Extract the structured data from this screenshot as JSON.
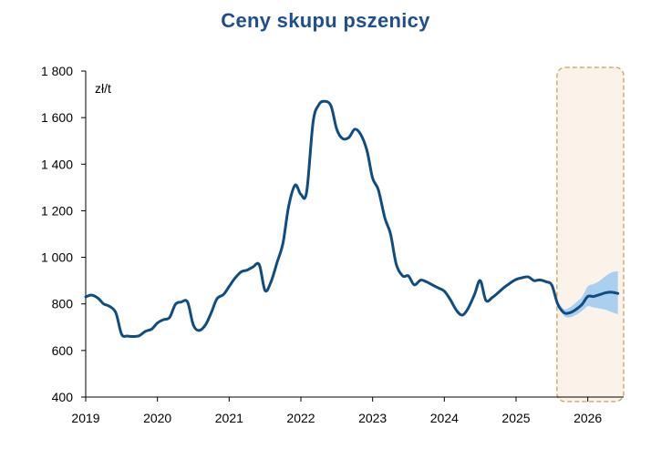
{
  "chart_data": {
    "type": "line",
    "title": "Ceny skupu pszenicy",
    "unit_label": "zł/t",
    "xlabel": "",
    "ylabel": "",
    "xlim": [
      2019.0,
      2026.5
    ],
    "ylim": [
      400,
      1800
    ],
    "y_ticks": [
      400,
      600,
      800,
      1000,
      1200,
      1400,
      1600,
      1800
    ],
    "y_tick_labels": [
      "400",
      "600",
      "800",
      "1 000",
      "1 200",
      "1 400",
      "1 600",
      "1 800"
    ],
    "x_ticks": [
      2019,
      2020,
      2021,
      2022,
      2023,
      2024,
      2025,
      2026
    ],
    "x_tick_labels": [
      "2019",
      "2020",
      "2021",
      "2022",
      "2023",
      "2024",
      "2025",
      "2026"
    ],
    "grid": false,
    "legend": "none",
    "colors": {
      "line": "#0f4c81",
      "band": "#9cc8f0",
      "forecast_fill": "#fbf3ea",
      "forecast_border": "#c8a060",
      "title": "#1f4e8c"
    },
    "forecast_region": [
      2025.57,
      2026.5
    ],
    "series": [
      {
        "values": [
          [
            2019.0,
            830
          ],
          [
            2019.08,
            838
          ],
          [
            2019.17,
            825
          ],
          [
            2019.25,
            800
          ],
          [
            2019.33,
            790
          ],
          [
            2019.42,
            762
          ],
          [
            2019.5,
            670
          ],
          [
            2019.58,
            662
          ],
          [
            2019.67,
            660
          ],
          [
            2019.75,
            664
          ],
          [
            2019.83,
            682
          ],
          [
            2019.92,
            692
          ],
          [
            2020.0,
            718
          ],
          [
            2020.08,
            732
          ],
          [
            2020.17,
            742
          ],
          [
            2020.25,
            798
          ],
          [
            2020.33,
            808
          ],
          [
            2020.42,
            808
          ],
          [
            2020.5,
            710
          ],
          [
            2020.58,
            686
          ],
          [
            2020.67,
            710
          ],
          [
            2020.75,
            762
          ],
          [
            2020.83,
            822
          ],
          [
            2020.92,
            840
          ],
          [
            2021.0,
            875
          ],
          [
            2021.08,
            910
          ],
          [
            2021.17,
            938
          ],
          [
            2021.25,
            945
          ],
          [
            2021.33,
            958
          ],
          [
            2021.42,
            968
          ],
          [
            2021.5,
            858
          ],
          [
            2021.58,
            892
          ],
          [
            2021.67,
            980
          ],
          [
            2021.75,
            1060
          ],
          [
            2021.83,
            1220
          ],
          [
            2021.92,
            1310
          ],
          [
            2022.0,
            1270
          ],
          [
            2022.08,
            1280
          ],
          [
            2022.17,
            1580
          ],
          [
            2022.25,
            1655
          ],
          [
            2022.33,
            1670
          ],
          [
            2022.42,
            1650
          ],
          [
            2022.5,
            1550
          ],
          [
            2022.58,
            1510
          ],
          [
            2022.67,
            1515
          ],
          [
            2022.75,
            1550
          ],
          [
            2022.83,
            1530
          ],
          [
            2022.92,
            1460
          ],
          [
            2023.0,
            1340
          ],
          [
            2023.08,
            1290
          ],
          [
            2023.17,
            1170
          ],
          [
            2023.25,
            1100
          ],
          [
            2023.33,
            970
          ],
          [
            2023.42,
            920
          ],
          [
            2023.5,
            920
          ],
          [
            2023.58,
            882
          ],
          [
            2023.67,
            902
          ],
          [
            2023.75,
            895
          ],
          [
            2023.83,
            882
          ],
          [
            2023.92,
            868
          ],
          [
            2024.0,
            855
          ],
          [
            2024.08,
            820
          ],
          [
            2024.17,
            772
          ],
          [
            2024.25,
            752
          ],
          [
            2024.33,
            780
          ],
          [
            2024.42,
            840
          ],
          [
            2024.5,
            900
          ],
          [
            2024.58,
            815
          ],
          [
            2024.67,
            828
          ],
          [
            2024.75,
            848
          ],
          [
            2024.83,
            870
          ],
          [
            2024.92,
            890
          ],
          [
            2025.0,
            905
          ],
          [
            2025.08,
            912
          ],
          [
            2025.17,
            916
          ],
          [
            2025.25,
            900
          ],
          [
            2025.33,
            903
          ],
          [
            2025.42,
            895
          ],
          [
            2025.5,
            880
          ],
          [
            2025.58,
            800
          ],
          [
            2025.67,
            762
          ],
          [
            2025.75,
            762
          ],
          [
            2025.83,
            775
          ],
          [
            2025.92,
            798
          ],
          [
            2026.0,
            832
          ],
          [
            2026.08,
            832
          ],
          [
            2026.17,
            840
          ],
          [
            2026.25,
            848
          ],
          [
            2026.33,
            850
          ],
          [
            2026.42,
            845
          ]
        ]
      }
    ],
    "forecast_band": {
      "x": [
        2025.58,
        2025.67,
        2025.75,
        2025.83,
        2025.92,
        2026.0,
        2026.08,
        2026.17,
        2026.25,
        2026.33,
        2026.42
      ],
      "lower": [
        790,
        748,
        742,
        752,
        770,
        790,
        785,
        780,
        775,
        765,
        755
      ],
      "upper": [
        810,
        778,
        785,
        805,
        830,
        875,
        885,
        900,
        920,
        935,
        940
      ]
    }
  }
}
